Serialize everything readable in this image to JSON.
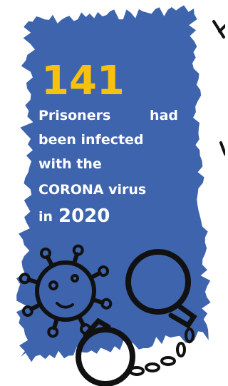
{
  "headline_number": 141,
  "lines": [
    "Prisoners",
    "had",
    "been infected",
    "with the",
    "CORONA virus"
  ],
  "last_line": {
    "prefix": "in",
    "year": 2020
  }
}
